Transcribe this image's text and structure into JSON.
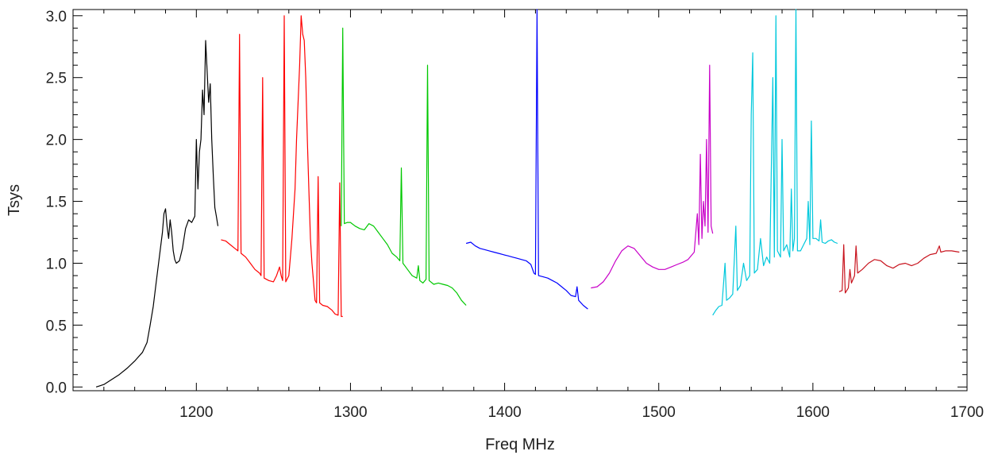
{
  "chart_data": {
    "type": "line",
    "title": "",
    "xlabel": "Freq MHz",
    "ylabel": "Tsys",
    "xlim": [
      1120,
      1700
    ],
    "ylim": [
      -0.03,
      3.05
    ],
    "grid": false,
    "x_ticks": [
      1200,
      1300,
      1400,
      1500,
      1600,
      1700
    ],
    "x_tick_labels": [
      "1200",
      "1300",
      "1400",
      "1500",
      "1600",
      "1700"
    ],
    "y_ticks": [
      0.0,
      0.5,
      1.0,
      1.5,
      2.0,
      2.5,
      3.0
    ],
    "y_tick_labels": [
      "0.0",
      "0.5",
      "1.0",
      "1.5",
      "2.0",
      "2.5",
      "3.0"
    ],
    "series": [
      {
        "color": "#000000",
        "points": [
          [
            1135,
            0.0
          ],
          [
            1140,
            0.02
          ],
          [
            1145,
            0.06
          ],
          [
            1150,
            0.1
          ],
          [
            1155,
            0.15
          ],
          [
            1160,
            0.21
          ],
          [
            1165,
            0.28
          ],
          [
            1168,
            0.36
          ],
          [
            1170,
            0.5
          ],
          [
            1172,
            0.65
          ],
          [
            1174,
            0.85
          ],
          [
            1176,
            1.05
          ],
          [
            1178,
            1.25
          ],
          [
            1179,
            1.4
          ],
          [
            1180,
            1.44
          ],
          [
            1181,
            1.3
          ],
          [
            1182,
            1.2
          ],
          [
            1183,
            1.35
          ],
          [
            1184,
            1.25
          ],
          [
            1185,
            1.1
          ],
          [
            1186,
            1.03
          ],
          [
            1187,
            1.0
          ],
          [
            1189,
            1.02
          ],
          [
            1191,
            1.12
          ],
          [
            1193,
            1.28
          ],
          [
            1195,
            1.35
          ],
          [
            1197,
            1.33
          ],
          [
            1199,
            1.38
          ],
          [
            1200,
            2.0
          ],
          [
            1201,
            1.6
          ],
          [
            1202,
            1.9
          ],
          [
            1203,
            2.0
          ],
          [
            1204,
            2.4
          ],
          [
            1205,
            2.2
          ],
          [
            1206,
            2.8
          ],
          [
            1207,
            2.55
          ],
          [
            1208,
            2.3
          ],
          [
            1209,
            2.45
          ],
          [
            1210,
            2.0
          ],
          [
            1211,
            1.7
          ],
          [
            1212,
            1.45
          ],
          [
            1213,
            1.38
          ],
          [
            1214,
            1.3
          ]
        ]
      },
      {
        "color": "#ff0000",
        "points": [
          [
            1216,
            1.19
          ],
          [
            1219,
            1.18
          ],
          [
            1222,
            1.15
          ],
          [
            1225,
            1.12
          ],
          [
            1227,
            1.1
          ],
          [
            1228,
            2.85
          ],
          [
            1229,
            1.08
          ],
          [
            1232,
            1.05
          ],
          [
            1235,
            1.0
          ],
          [
            1238,
            0.95
          ],
          [
            1241,
            0.92
          ],
          [
            1242,
            0.9
          ],
          [
            1243,
            2.5
          ],
          [
            1244,
            0.88
          ],
          [
            1247,
            0.86
          ],
          [
            1250,
            0.85
          ],
          [
            1252,
            0.9
          ],
          [
            1254,
            0.97
          ],
          [
            1255,
            0.9
          ],
          [
            1256,
            0.86
          ],
          [
            1257,
            3.0
          ],
          [
            1258,
            0.85
          ],
          [
            1260,
            0.9
          ],
          [
            1262,
            1.2
          ],
          [
            1264,
            1.6
          ],
          [
            1265,
            2.0
          ],
          [
            1267,
            2.6
          ],
          [
            1268,
            3.0
          ],
          [
            1269,
            2.85
          ],
          [
            1270,
            2.8
          ],
          [
            1271,
            2.5
          ],
          [
            1272,
            2.0
          ],
          [
            1273,
            1.6
          ],
          [
            1274,
            1.2
          ],
          [
            1275,
            1.0
          ],
          [
            1276,
            0.85
          ],
          [
            1277,
            0.7
          ],
          [
            1278,
            0.68
          ],
          [
            1279,
            1.7
          ],
          [
            1280,
            0.68
          ],
          [
            1282,
            0.66
          ],
          [
            1285,
            0.65
          ],
          [
            1288,
            0.62
          ],
          [
            1290,
            0.59
          ],
          [
            1292,
            0.58
          ],
          [
            1293,
            1.65
          ],
          [
            1294,
            0.57
          ],
          [
            1295,
            0.57
          ]
        ]
      },
      {
        "color": "#00c800",
        "points": [
          [
            1294,
            1.3
          ],
          [
            1295,
            2.9
          ],
          [
            1296,
            1.32
          ],
          [
            1298,
            1.33
          ],
          [
            1300,
            1.33
          ],
          [
            1303,
            1.3
          ],
          [
            1306,
            1.28
          ],
          [
            1309,
            1.27
          ],
          [
            1312,
            1.32
          ],
          [
            1315,
            1.3
          ],
          [
            1318,
            1.25
          ],
          [
            1321,
            1.2
          ],
          [
            1324,
            1.15
          ],
          [
            1327,
            1.08
          ],
          [
            1330,
            1.05
          ],
          [
            1332,
            1.02
          ],
          [
            1333,
            1.77
          ],
          [
            1334,
            1.0
          ],
          [
            1337,
            0.95
          ],
          [
            1340,
            0.9
          ],
          [
            1343,
            0.88
          ],
          [
            1344,
            0.98
          ],
          [
            1345,
            0.86
          ],
          [
            1347,
            0.84
          ],
          [
            1349,
            0.87
          ],
          [
            1350,
            2.6
          ],
          [
            1351,
            0.86
          ],
          [
            1354,
            0.83
          ],
          [
            1357,
            0.84
          ],
          [
            1360,
            0.83
          ],
          [
            1363,
            0.82
          ],
          [
            1366,
            0.8
          ],
          [
            1369,
            0.76
          ],
          [
            1372,
            0.7
          ],
          [
            1375,
            0.66
          ]
        ]
      },
      {
        "color": "#0000ff",
        "points": [
          [
            1375,
            1.16
          ],
          [
            1378,
            1.17
          ],
          [
            1381,
            1.14
          ],
          [
            1384,
            1.12
          ],
          [
            1387,
            1.11
          ],
          [
            1390,
            1.1
          ],
          [
            1393,
            1.09
          ],
          [
            1396,
            1.08
          ],
          [
            1399,
            1.07
          ],
          [
            1402,
            1.06
          ],
          [
            1405,
            1.05
          ],
          [
            1408,
            1.04
          ],
          [
            1411,
            1.03
          ],
          [
            1414,
            1.02
          ],
          [
            1417,
            0.99
          ],
          [
            1419,
            0.92
          ],
          [
            1420,
            0.91
          ],
          [
            1421,
            3.05
          ],
          [
            1422,
            0.9
          ],
          [
            1425,
            0.89
          ],
          [
            1428,
            0.88
          ],
          [
            1431,
            0.86
          ],
          [
            1434,
            0.84
          ],
          [
            1437,
            0.81
          ],
          [
            1440,
            0.78
          ],
          [
            1443,
            0.74
          ],
          [
            1446,
            0.73
          ],
          [
            1447,
            0.81
          ],
          [
            1448,
            0.7
          ],
          [
            1451,
            0.66
          ],
          [
            1454,
            0.63
          ]
        ]
      },
      {
        "color": "#c800c8",
        "points": [
          [
            1456,
            0.8
          ],
          [
            1460,
            0.81
          ],
          [
            1464,
            0.85
          ],
          [
            1468,
            0.92
          ],
          [
            1472,
            1.02
          ],
          [
            1476,
            1.1
          ],
          [
            1480,
            1.14
          ],
          [
            1484,
            1.12
          ],
          [
            1488,
            1.06
          ],
          [
            1492,
            1.0
          ],
          [
            1496,
            0.97
          ],
          [
            1500,
            0.95
          ],
          [
            1504,
            0.95
          ],
          [
            1508,
            0.97
          ],
          [
            1512,
            0.99
          ],
          [
            1516,
            1.01
          ],
          [
            1519,
            1.03
          ],
          [
            1521,
            1.06
          ],
          [
            1523,
            1.09
          ],
          [
            1525,
            1.4
          ],
          [
            1526,
            1.15
          ],
          [
            1527,
            1.88
          ],
          [
            1528,
            1.2
          ],
          [
            1529,
            1.5
          ],
          [
            1530,
            1.3
          ],
          [
            1531,
            2.0
          ],
          [
            1532,
            1.25
          ],
          [
            1533,
            2.6
          ],
          [
            1534,
            1.3
          ],
          [
            1535,
            1.24
          ]
        ]
      },
      {
        "color": "#00c8dc",
        "points": [
          [
            1535,
            0.58
          ],
          [
            1537,
            0.62
          ],
          [
            1539,
            0.65
          ],
          [
            1541,
            0.66
          ],
          [
            1543,
            1.0
          ],
          [
            1544,
            0.7
          ],
          [
            1546,
            0.72
          ],
          [
            1548,
            0.75
          ],
          [
            1550,
            1.3
          ],
          [
            1551,
            0.78
          ],
          [
            1553,
            0.82
          ],
          [
            1555,
            1.0
          ],
          [
            1557,
            0.86
          ],
          [
            1559,
            0.9
          ],
          [
            1560,
            2.2
          ],
          [
            1561,
            2.7
          ],
          [
            1562,
            0.92
          ],
          [
            1564,
            0.95
          ],
          [
            1566,
            1.2
          ],
          [
            1568,
            0.98
          ],
          [
            1570,
            1.05
          ],
          [
            1572,
            1.0
          ],
          [
            1574,
            2.5
          ],
          [
            1575,
            1.05
          ],
          [
            1576,
            3.0
          ],
          [
            1577,
            1.1
          ],
          [
            1579,
            1.05
          ],
          [
            1580,
            2.0
          ],
          [
            1581,
            1.1
          ],
          [
            1583,
            1.15
          ],
          [
            1585,
            1.05
          ],
          [
            1586,
            1.6
          ],
          [
            1587,
            1.1
          ],
          [
            1588,
            1.2
          ],
          [
            1589,
            3.05
          ],
          [
            1590,
            1.1
          ],
          [
            1592,
            1.1
          ],
          [
            1594,
            1.15
          ],
          [
            1596,
            1.2
          ],
          [
            1597,
            1.5
          ],
          [
            1598,
            1.15
          ],
          [
            1599,
            2.15
          ],
          [
            1600,
            1.2
          ],
          [
            1602,
            1.2
          ],
          [
            1604,
            1.18
          ],
          [
            1605,
            1.35
          ],
          [
            1606,
            1.17
          ],
          [
            1608,
            1.16
          ],
          [
            1610,
            1.18
          ],
          [
            1612,
            1.19
          ],
          [
            1614,
            1.17
          ],
          [
            1616,
            1.16
          ]
        ]
      },
      {
        "color": "#c8141e",
        "points": [
          [
            1617,
            0.77
          ],
          [
            1619,
            0.78
          ],
          [
            1620,
            1.15
          ],
          [
            1621,
            0.76
          ],
          [
            1623,
            0.8
          ],
          [
            1624,
            0.95
          ],
          [
            1625,
            0.84
          ],
          [
            1627,
            0.9
          ],
          [
            1628,
            1.14
          ],
          [
            1629,
            0.92
          ],
          [
            1632,
            0.95
          ],
          [
            1636,
            1.0
          ],
          [
            1640,
            1.03
          ],
          [
            1644,
            1.02
          ],
          [
            1648,
            0.98
          ],
          [
            1652,
            0.96
          ],
          [
            1656,
            0.99
          ],
          [
            1660,
            1.0
          ],
          [
            1664,
            0.98
          ],
          [
            1668,
            1.0
          ],
          [
            1672,
            1.04
          ],
          [
            1676,
            1.07
          ],
          [
            1680,
            1.08
          ],
          [
            1682,
            1.14
          ],
          [
            1683,
            1.09
          ],
          [
            1686,
            1.1
          ],
          [
            1690,
            1.1
          ],
          [
            1695,
            1.09
          ]
        ]
      }
    ]
  }
}
